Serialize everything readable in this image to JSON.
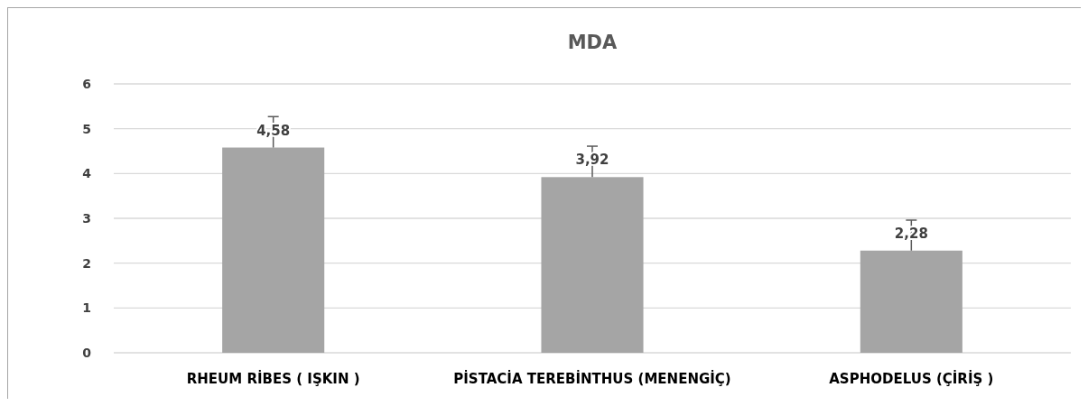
{
  "chart_data": {
    "type": "bar",
    "title": "MDA",
    "categories": [
      "RHEUM RİBES ( IŞKIN )",
      "PİSTACİA TEREBİNTHUS (MENENGİÇ)",
      "ASPHODELUS (ÇİRİŞ )"
    ],
    "values": [
      4.58,
      3.92,
      2.28
    ],
    "errors": [
      [
        4.58,
        5.27
      ],
      [
        3.92,
        4.61
      ],
      [
        2.28,
        2.96
      ]
    ],
    "value_labels": [
      "4,58",
      "3,92",
      "2,28"
    ],
    "color": "#a5a5a5",
    "ylim": [
      0,
      6
    ],
    "yticks": [
      0,
      1,
      2,
      3,
      4,
      5,
      6
    ],
    "grid": "y"
  }
}
